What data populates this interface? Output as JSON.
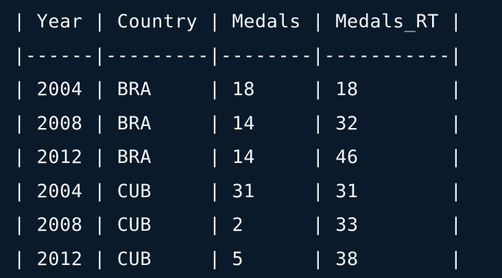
{
  "table": {
    "lines": [
      "| Year | Country | Medals | Medals_RT |",
      "|------|---------|--------|-----------|",
      "| 2004 | BRA     | 18     | 18        |",
      "| 2008 | BRA     | 14     | 32        |",
      "| 2012 | BRA     | 14     | 46        |",
      "| 2004 | CUB     | 31     | 31        |",
      "| 2008 | CUB     | 2      | 33        |",
      "| 2012 | CUB     | 5      | 38        |"
    ]
  },
  "colors": {
    "background": "#0b1a2a",
    "text": "#f2f5f8"
  }
}
